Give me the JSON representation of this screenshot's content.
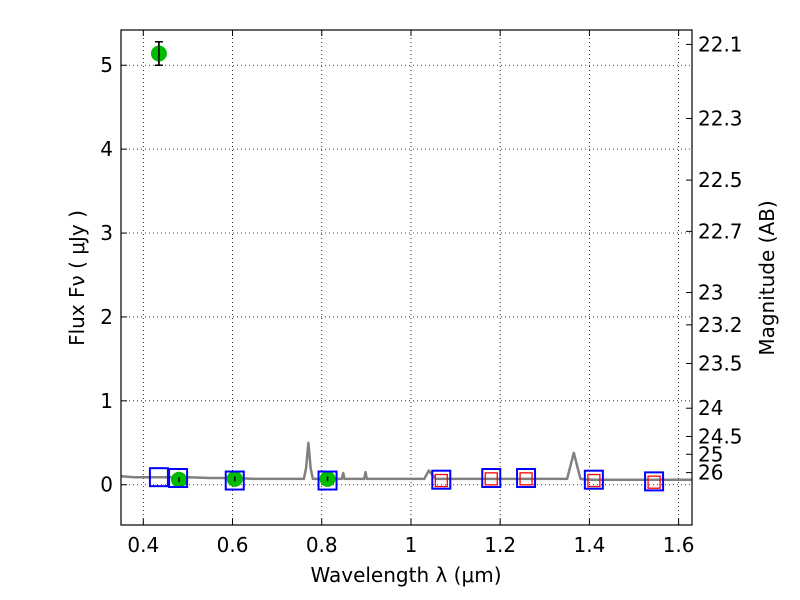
{
  "chart_data": {
    "type": "scatter",
    "xlabel": "Wavelength  λ (μm)",
    "ylabel": "Flux  Fν  ( μJy )",
    "ylabel2": "Magnitude (AB)",
    "xlim": [
      0.35,
      1.63
    ],
    "ylim": [
      -0.48,
      5.42
    ],
    "grid": true,
    "x_ticks": [
      0.4,
      0.6,
      0.8,
      1.0,
      1.2,
      1.4,
      1.6
    ],
    "x_tick_labels": [
      "0.4",
      "0.6",
      "0.8",
      "1",
      "1.2",
      "1.4",
      "1.6"
    ],
    "y_ticks": [
      0,
      1,
      2,
      3,
      4,
      5
    ],
    "y_tick_labels": [
      "0",
      "1",
      "2",
      "3",
      "4",
      "5"
    ],
    "mag_ticks": [
      "22.1",
      "22.3",
      "22.5",
      "22.7",
      "23",
      "23.2",
      "23.5",
      "24",
      "24.5",
      "25",
      "26"
    ],
    "series": [
      {
        "kind": "line",
        "color": "#808080",
        "x": [
          0.35,
          0.38,
          0.42,
          0.46,
          0.5,
          0.55,
          0.6,
          0.65,
          0.7,
          0.76,
          0.765,
          0.77,
          0.775,
          0.78,
          0.845,
          0.848,
          0.851,
          0.895,
          0.898,
          0.901,
          0.95,
          1.0,
          1.03,
          1.04,
          1.055,
          1.1,
          1.2,
          1.3,
          1.35,
          1.365,
          1.38,
          1.4,
          1.45,
          1.5,
          1.55,
          1.63
        ],
        "y": [
          0.1,
          0.09,
          0.09,
          0.09,
          0.09,
          0.08,
          0.08,
          0.07,
          0.07,
          0.07,
          0.2,
          0.5,
          0.2,
          0.07,
          0.07,
          0.14,
          0.07,
          0.07,
          0.15,
          0.07,
          0.07,
          0.07,
          0.07,
          0.17,
          0.07,
          0.07,
          0.07,
          0.07,
          0.07,
          0.38,
          0.07,
          0.06,
          0.06,
          0.06,
          0.06,
          0.06
        ]
      },
      {
        "kind": "points",
        "marker": "circle",
        "color": "#00bb00",
        "x": [
          0.435,
          0.48,
          0.605,
          0.813
        ],
        "y": [
          5.14,
          0.06,
          0.07,
          0.07
        ],
        "err": [
          0.14,
          0.03,
          0.03,
          0.03
        ]
      },
      {
        "kind": "points",
        "marker": "square",
        "color": "#0000ff",
        "x": [
          0.435,
          0.478,
          0.605,
          0.813,
          1.068,
          1.18,
          1.258,
          1.41,
          1.545
        ],
        "y": [
          0.09,
          0.08,
          0.05,
          0.05,
          0.06,
          0.08,
          0.08,
          0.06,
          0.04
        ]
      },
      {
        "kind": "points",
        "marker": "square",
        "color": "#ff0000",
        "x": [
          1.068,
          1.18,
          1.258,
          1.41,
          1.545
        ],
        "y": [
          0.05,
          0.07,
          0.07,
          0.05,
          0.03
        ]
      }
    ]
  }
}
